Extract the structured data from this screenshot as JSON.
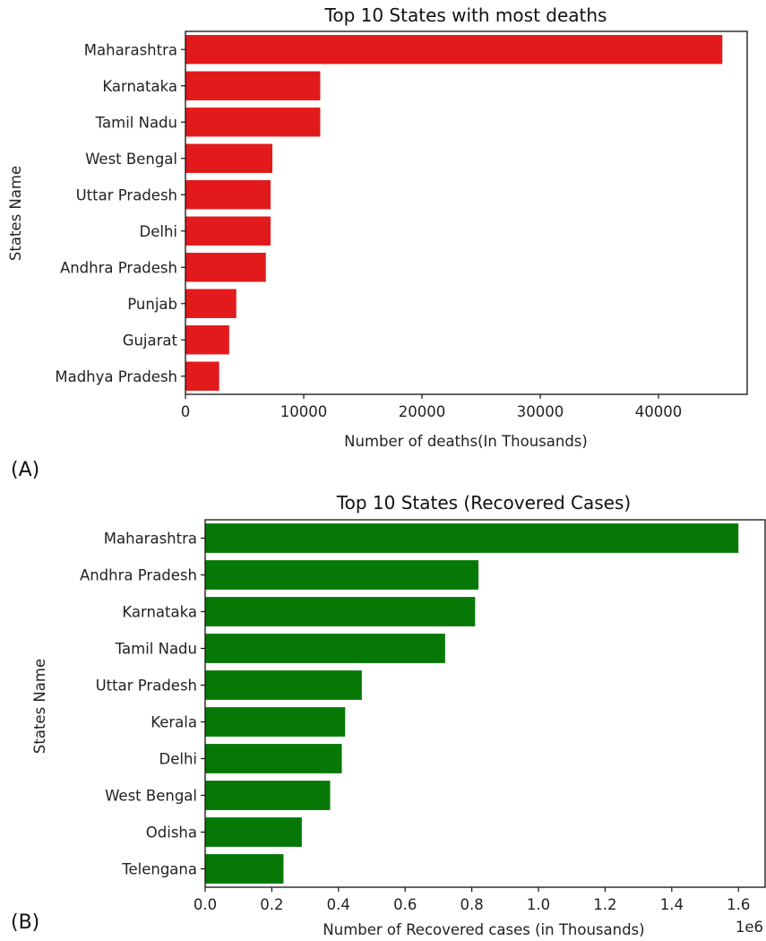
{
  "panels": [
    "(A)",
    "(B)"
  ],
  "chart_data": [
    {
      "type": "bar",
      "orientation": "horizontal",
      "title": "Top 10 States with most deaths",
      "xlabel": "Number of deaths(In Thousands)",
      "ylabel": "States Name",
      "categories": [
        "Maharashtra",
        "Karnataka",
        "Tamil Nadu",
        "West Bengal",
        "Uttar Pradesh",
        "Delhi",
        "Andhra Pradesh",
        "Punjab",
        "Gujarat",
        "Madhya Pradesh"
      ],
      "values": [
        45400,
        11400,
        11400,
        7350,
        7200,
        7200,
        6800,
        4300,
        3700,
        2850
      ],
      "xlim": [
        0,
        47500
      ],
      "xticks": [
        0,
        10000,
        20000,
        30000,
        40000
      ],
      "xtick_labels": [
        "0",
        "10000",
        "20000",
        "30000",
        "40000"
      ],
      "bar_color": "#e31a1c",
      "grid": false
    },
    {
      "type": "bar",
      "orientation": "horizontal",
      "title": "Top 10 States (Recovered Cases)",
      "xlabel": "Number of Recovered cases (in Thousands)",
      "ylabel": "States Name",
      "offset_label": "1e6",
      "categories": [
        "Maharashtra",
        "Andhra Pradesh",
        "Karnataka",
        "Tamil Nadu",
        "Uttar Pradesh",
        "Kerala",
        "Delhi",
        "West Bengal",
        "Odisha",
        "Telengana"
      ],
      "values": [
        1.6,
        0.82,
        0.81,
        0.72,
        0.47,
        0.42,
        0.41,
        0.375,
        0.29,
        0.235
      ],
      "xlim": [
        0,
        1.68
      ],
      "xticks": [
        0,
        0.2,
        0.4,
        0.6,
        0.8,
        1.0,
        1.2,
        1.4,
        1.6
      ],
      "xtick_labels": [
        "0.0",
        "0.2",
        "0.4",
        "0.6",
        "0.8",
        "1.0",
        "1.2",
        "1.4",
        "1.6"
      ],
      "bar_color": "#067806",
      "grid": false
    }
  ]
}
